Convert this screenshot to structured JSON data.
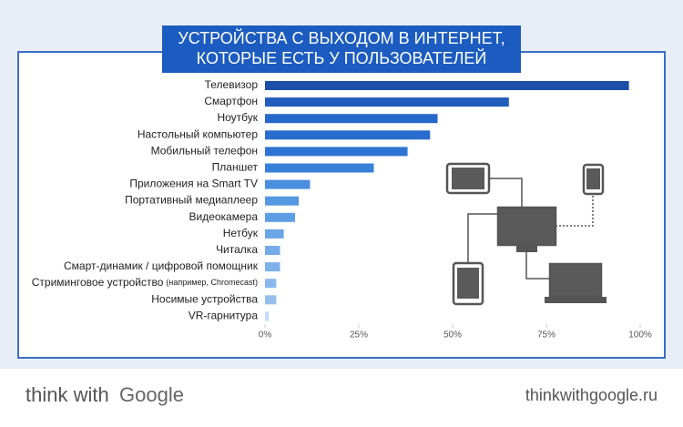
{
  "chart_data": {
    "type": "hbar",
    "title_lines": [
      "УСТРОЙСТВА С ВЫХОДОМ В ИНТЕРНЕТ,",
      "КОТОРЫЕ ЕСТЬ У ПОЛЬЗОВАТЕЛЕЙ"
    ],
    "categories": [
      "Телевизор",
      "Смартфон",
      "Ноутбук",
      "Настольный компьютер",
      "Мобильный телефон",
      "Планшет",
      "Приложения на Smart TV",
      "Портативный медиаплеер",
      "Видеокамера",
      "Нетбук",
      "Читалка",
      "Смарт-динамик / цифровой помощник",
      "Стриминговое устройство",
      "Носимые устройства",
      "VR-гарнитура"
    ],
    "category_notes": [
      null,
      null,
      null,
      null,
      null,
      null,
      null,
      null,
      null,
      null,
      null,
      null,
      "(например, Chromecast)",
      null,
      null
    ],
    "values": [
      97,
      65,
      46,
      44,
      38,
      29,
      12,
      9,
      8,
      5,
      4,
      4,
      3,
      3,
      1
    ],
    "colors": [
      "#1b4fa8",
      "#1f5cbc",
      "#2668c9",
      "#2a6ccd",
      "#2f74d2",
      "#3680d8",
      "#4a8fdf",
      "#5498e2",
      "#5d9de4",
      "#6aa6e7",
      "#74ace9",
      "#7cb1ea",
      "#89b9ec",
      "#95c0ee",
      "#c4dbf6"
    ],
    "xlim": [
      0,
      100
    ],
    "xticks": [
      {
        "value": 0,
        "label": "0%"
      },
      {
        "value": 25,
        "label": "25%"
      },
      {
        "value": 50,
        "label": "50%"
      },
      {
        "value": 75,
        "label": "75%"
      },
      {
        "value": 100,
        "label": "100%"
      }
    ]
  },
  "footer": {
    "brand_prefix": "think with",
    "brand_name": "Google",
    "url": "thinkwithgoogle.ru"
  }
}
